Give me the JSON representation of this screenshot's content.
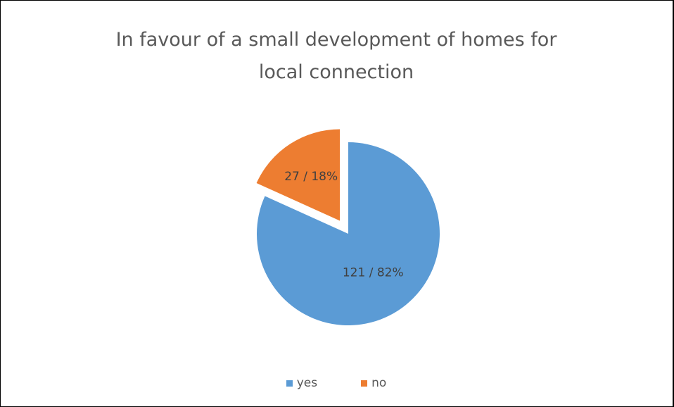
{
  "chart_data": {
    "type": "pie",
    "title": [
      "In favour of a small development of homes for",
      "local connection"
    ],
    "slices": [
      {
        "name": "yes",
        "value": 121,
        "label": "121 / 82%",
        "color": "#5b9bd5",
        "exploded": false
      },
      {
        "name": "no",
        "value": 27,
        "label": "27 / 18%",
        "color": "#ed7d31",
        "exploded": true
      }
    ],
    "legend_position": "bottom"
  }
}
